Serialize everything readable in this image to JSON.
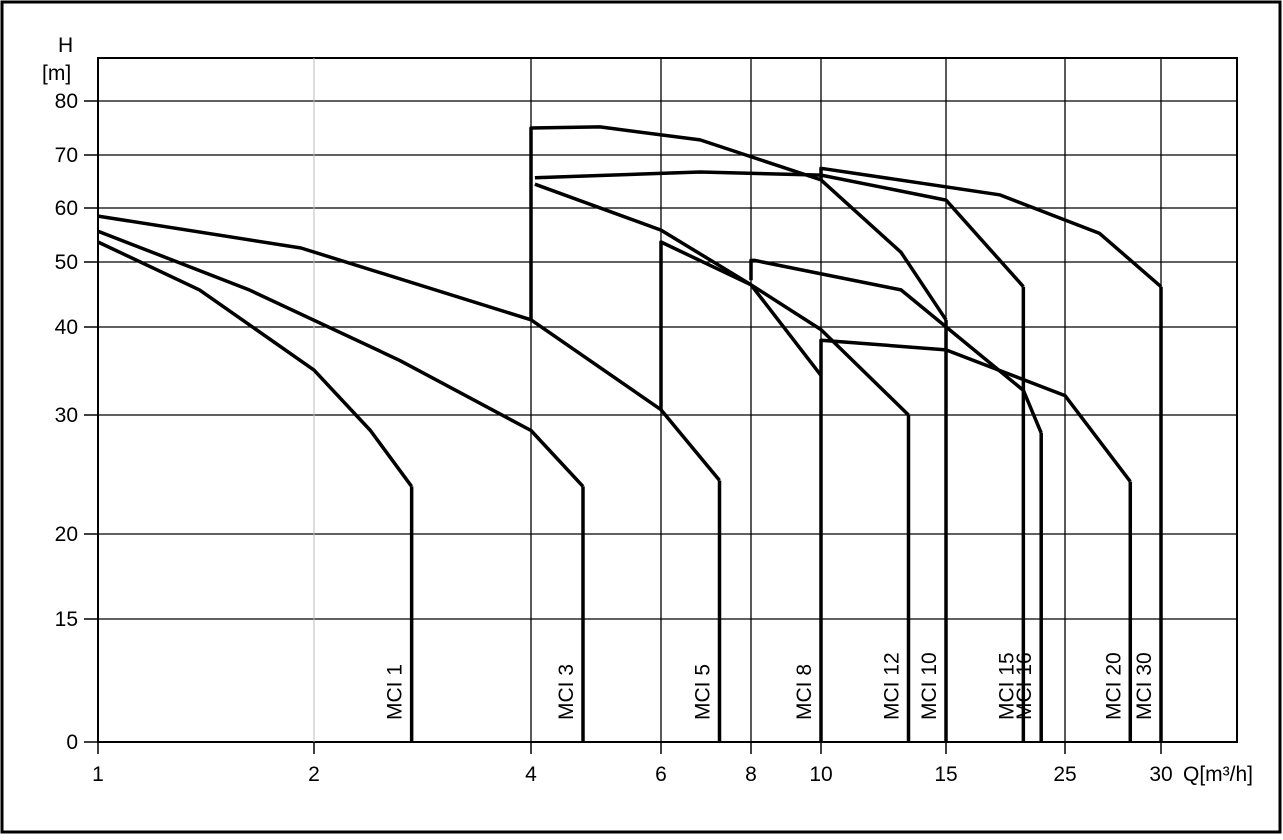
{
  "chart_data": {
    "type": "line",
    "y_label": "H",
    "y_unit": "[m]",
    "x_label": "Q[m³/h]",
    "xticks": [
      1,
      2,
      4,
      6,
      8,
      10,
      15,
      25,
      30
    ],
    "yticks": [
      0,
      15,
      20,
      30,
      40,
      50,
      60,
      70,
      80
    ],
    "grid": true,
    "series": [
      {
        "name": "MCI 1",
        "color": "#000000",
        "x": [
          1,
          1.47,
          2,
          2.52,
          2.9
        ],
        "y": [
          53.7,
          45.7,
          35.1,
          28.7,
          24
        ]
      },
      {
        "name": "MCI 3",
        "color": "#000000",
        "x": [
          1,
          1.7,
          2.79,
          4,
          4.8
        ],
        "y": [
          55.7,
          45.7,
          36.2,
          28.7,
          24
        ]
      },
      {
        "name": "MCI 5",
        "color": "#000000",
        "x": [
          1,
          1.94,
          4,
          6,
          7.3
        ],
        "y": [
          58.5,
          52.6,
          41.1,
          30.6,
          24.5
        ]
      },
      {
        "name": "MCI 8",
        "color": "#000000",
        "x": [
          6,
          6,
          8,
          10
        ],
        "y": [
          30.6,
          53.7,
          46.5,
          34.5
        ]
      },
      {
        "name": "MCI 12",
        "color": "#000000",
        "x": [
          4.06,
          6,
          8,
          10,
          13.5
        ],
        "y": [
          64.5,
          55.9,
          46.5,
          39.7,
          30
        ]
      },
      {
        "name": "MCI 10",
        "color": "#000000",
        "x": [
          4,
          4,
          5.06,
          6.87,
          10,
          13.2,
          15
        ],
        "y": [
          41.1,
          75,
          75.2,
          72.8,
          65.3,
          51.8,
          41.1
        ]
      },
      {
        "name": "MCI 15",
        "color": "#000000",
        "x": [
          4.06,
          6.87,
          10,
          15,
          21.5
        ],
        "y": [
          65.7,
          66.8,
          66.2,
          61.5,
          46.2
        ]
      },
      {
        "name": "MCI 16",
        "color": "#000000",
        "x": [
          8,
          8,
          8.1,
          13.2,
          21.5,
          23
        ],
        "y": [
          47.2,
          50.3,
          50.3,
          45.7,
          32.8,
          28.5
        ]
      },
      {
        "name": "MCI 20",
        "color": "#000000",
        "x": [
          10,
          10,
          15,
          25,
          28.4
        ],
        "y": [
          34.5,
          38.5,
          37.4,
          32.2,
          24.4
        ]
      },
      {
        "name": "MCI 30",
        "color": "#000000",
        "x": [
          10,
          10,
          19.5,
          26.8,
          30
        ],
        "y": [
          65.3,
          67.5,
          62.5,
          55.3,
          46.2
        ]
      }
    ]
  }
}
